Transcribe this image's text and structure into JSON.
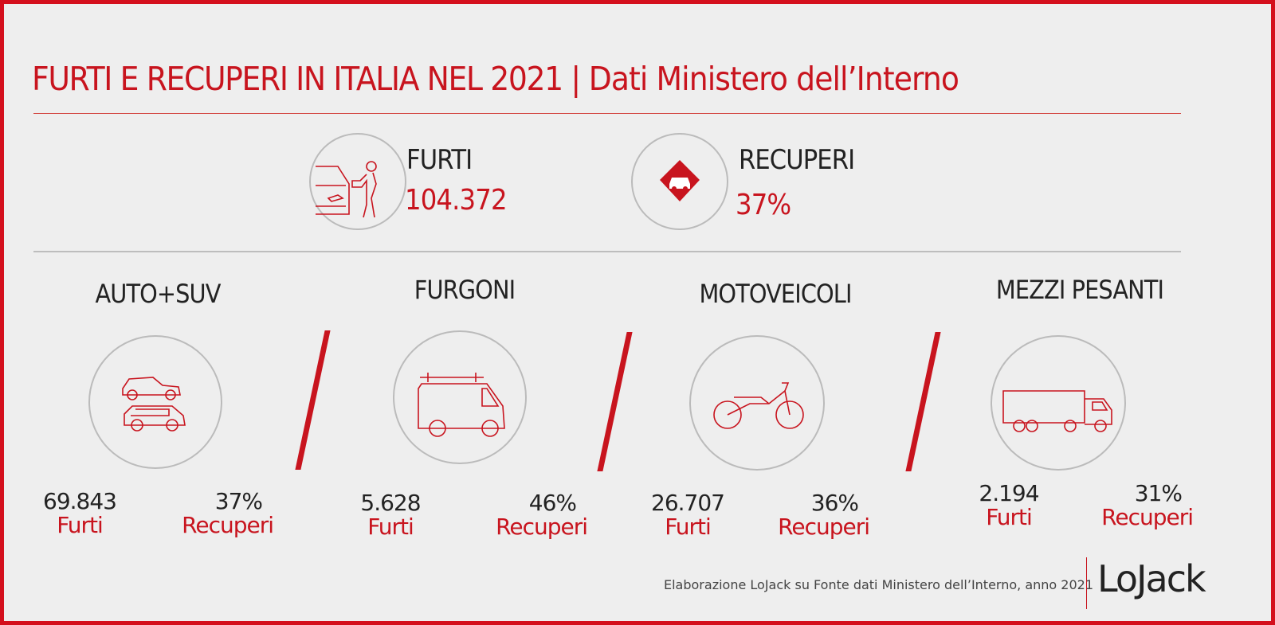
{
  "header": {
    "title": "FURTI E RECUPERI IN ITALIA NEL 2021",
    "separator": "|",
    "subtitle": "Dati Ministero dell’Interno"
  },
  "summary": {
    "furti": {
      "label": "FURTI",
      "value": "104.372",
      "icon": "car-thief-icon"
    },
    "recuperi": {
      "label": "RECUPERI",
      "value": "37%",
      "icon": "location-pin-car-icon"
    }
  },
  "categories": [
    {
      "name": "AUTO+SUV",
      "icon": "car-suv-icon",
      "furti": "69.843",
      "furti_label": "Furti",
      "recuperi": "37%",
      "recuperi_label": "Recuperi"
    },
    {
      "name": "FURGONI",
      "icon": "van-icon",
      "furti": "5.628",
      "furti_label": "Furti",
      "recuperi": "46%",
      "recuperi_label": "Recuperi"
    },
    {
      "name": "MOTOVEICOLI",
      "icon": "motorcycle-icon",
      "furti": "26.707",
      "furti_label": "Furti",
      "recuperi": "36%",
      "recuperi_label": "Recuperi"
    },
    {
      "name": "MEZZI PESANTI",
      "icon": "truck-icon",
      "furti": "2.194",
      "furti_label": "Furti",
      "recuperi": "31%",
      "recuperi_label": "Recuperi"
    }
  ],
  "footer": {
    "source": "Elaborazione LoJack su Fonte dati Ministero dell’Interno, anno 2021",
    "logo": "LoJack"
  },
  "colors": {
    "accent": "#c8141e",
    "background": "#eeeeee",
    "text": "#222222"
  }
}
